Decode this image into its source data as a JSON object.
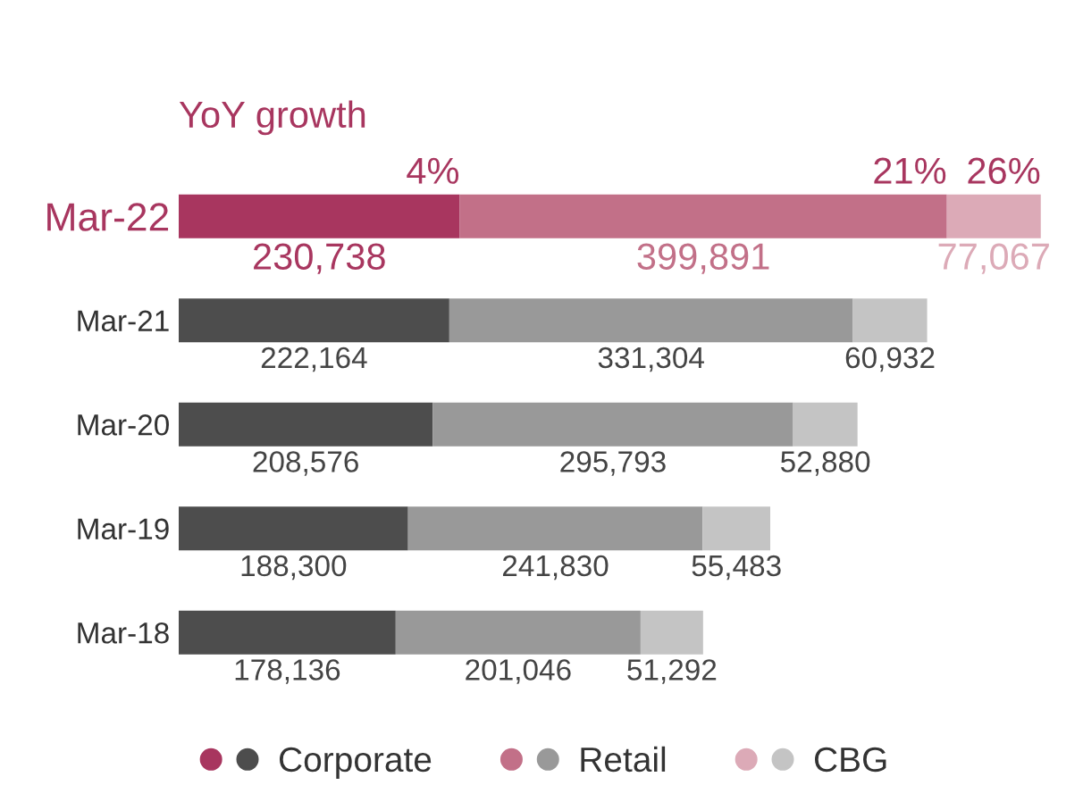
{
  "chart_data": {
    "type": "bar",
    "orientation": "horizontal",
    "stacked": true,
    "categories": [
      "Mar-22",
      "Mar-21",
      "Mar-20",
      "Mar-19",
      "Mar-18"
    ],
    "series": [
      {
        "name": "Corporate",
        "color": "#4d4d4d",
        "colors": [
          "#a8365f",
          "#4d4d4d",
          "#4d4d4d",
          "#4d4d4d",
          "#4d4d4d"
        ],
        "values": [
          230738,
          222164,
          208576,
          188300,
          178136
        ],
        "value_labels": [
          "230,738",
          "222,164",
          "208,576",
          "188,300",
          "178,136"
        ]
      },
      {
        "name": "Retail",
        "color": "#999999",
        "colors": [
          "#c27088",
          "#999999",
          "#999999",
          "#999999",
          "#999999"
        ],
        "values": [
          399891,
          331304,
          295793,
          241830,
          201046
        ],
        "value_labels": [
          "399,891",
          "331,304",
          "295,793",
          "241,830",
          "201,046"
        ]
      },
      {
        "name": "CBG",
        "color": "#c4c4c4",
        "colors": [
          "#dcaab7",
          "#c4c4c4",
          "#c4c4c4",
          "#c4c4c4",
          "#c4c4c4"
        ],
        "values": [
          77067,
          60932,
          52880,
          55483,
          51292
        ],
        "value_labels": [
          "77,067",
          "60,932",
          "52,880",
          "55,483",
          "51,292"
        ]
      }
    ],
    "annotations": [
      "YoY growth",
      {
        "text": "4%",
        "x": 230738,
        "y": "Mar-22"
      },
      {
        "text": "21%",
        "x": 630629,
        "y": "Mar-22"
      },
      {
        "text": "26%",
        "x": 707696,
        "y": "Mar-22"
      }
    ],
    "legend": "bottom",
    "grid": false,
    "tick_labels": "y"
  }
}
